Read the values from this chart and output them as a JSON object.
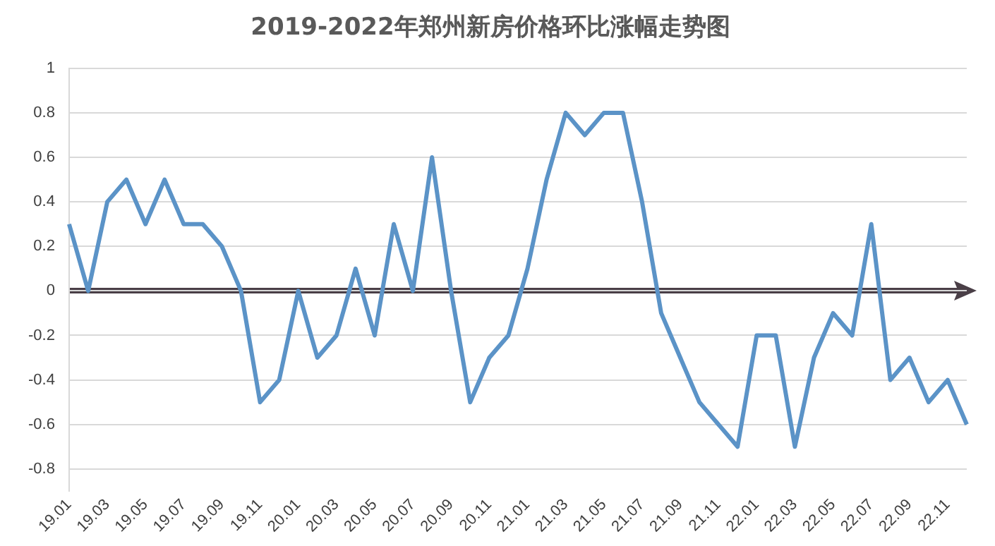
{
  "chart_data": {
    "type": "line",
    "title": "2019-2022年郑州新房价格环比涨幅走势图",
    "categories": [
      "19.01",
      null,
      "19.03",
      null,
      "19.05",
      null,
      "19.07",
      null,
      "19.09",
      null,
      "19.11",
      null,
      "20.01",
      null,
      "20.03",
      null,
      "20.05",
      null,
      "20.07",
      null,
      "20.09",
      null,
      "20.11",
      null,
      "21.01",
      null,
      "21.03",
      null,
      "21.05",
      null,
      "21.07",
      null,
      "21.09",
      null,
      "21.11",
      null,
      "22.01",
      null,
      "22.03",
      null,
      "22.05",
      null,
      "22.07",
      null,
      "22.09",
      null,
      "22.11",
      null
    ],
    "series": [
      {
        "color": "#5b93c7",
        "values": [
          0.3,
          0,
          0.4,
          0.5,
          0.3,
          0.5,
          0.3,
          0.3,
          0.2,
          0,
          -0.5,
          -0.4,
          0,
          -0.3,
          -0.2,
          0.1,
          -0.2,
          0.3,
          0,
          0.6,
          0,
          -0.5,
          -0.3,
          -0.2,
          0.1,
          0.5,
          0.8,
          0.7,
          0.8,
          0.8,
          0.4,
          -0.1,
          -0.3,
          -0.5,
          -0.6,
          -0.7,
          -0.2,
          -0.2,
          -0.7,
          -0.3,
          -0.1,
          -0.2,
          0.3,
          -0.4,
          -0.3,
          -0.5,
          -0.4,
          -0.6
        ]
      }
    ],
    "ylim": [
      -0.9,
      1
    ],
    "yticks": [
      -0.8,
      -0.6,
      -0.4,
      -0.2,
      0,
      0.2,
      0.4,
      0.6,
      0.8,
      1
    ],
    "grid": "y",
    "legend": false,
    "marker": "none",
    "line_style": "solid"
  }
}
